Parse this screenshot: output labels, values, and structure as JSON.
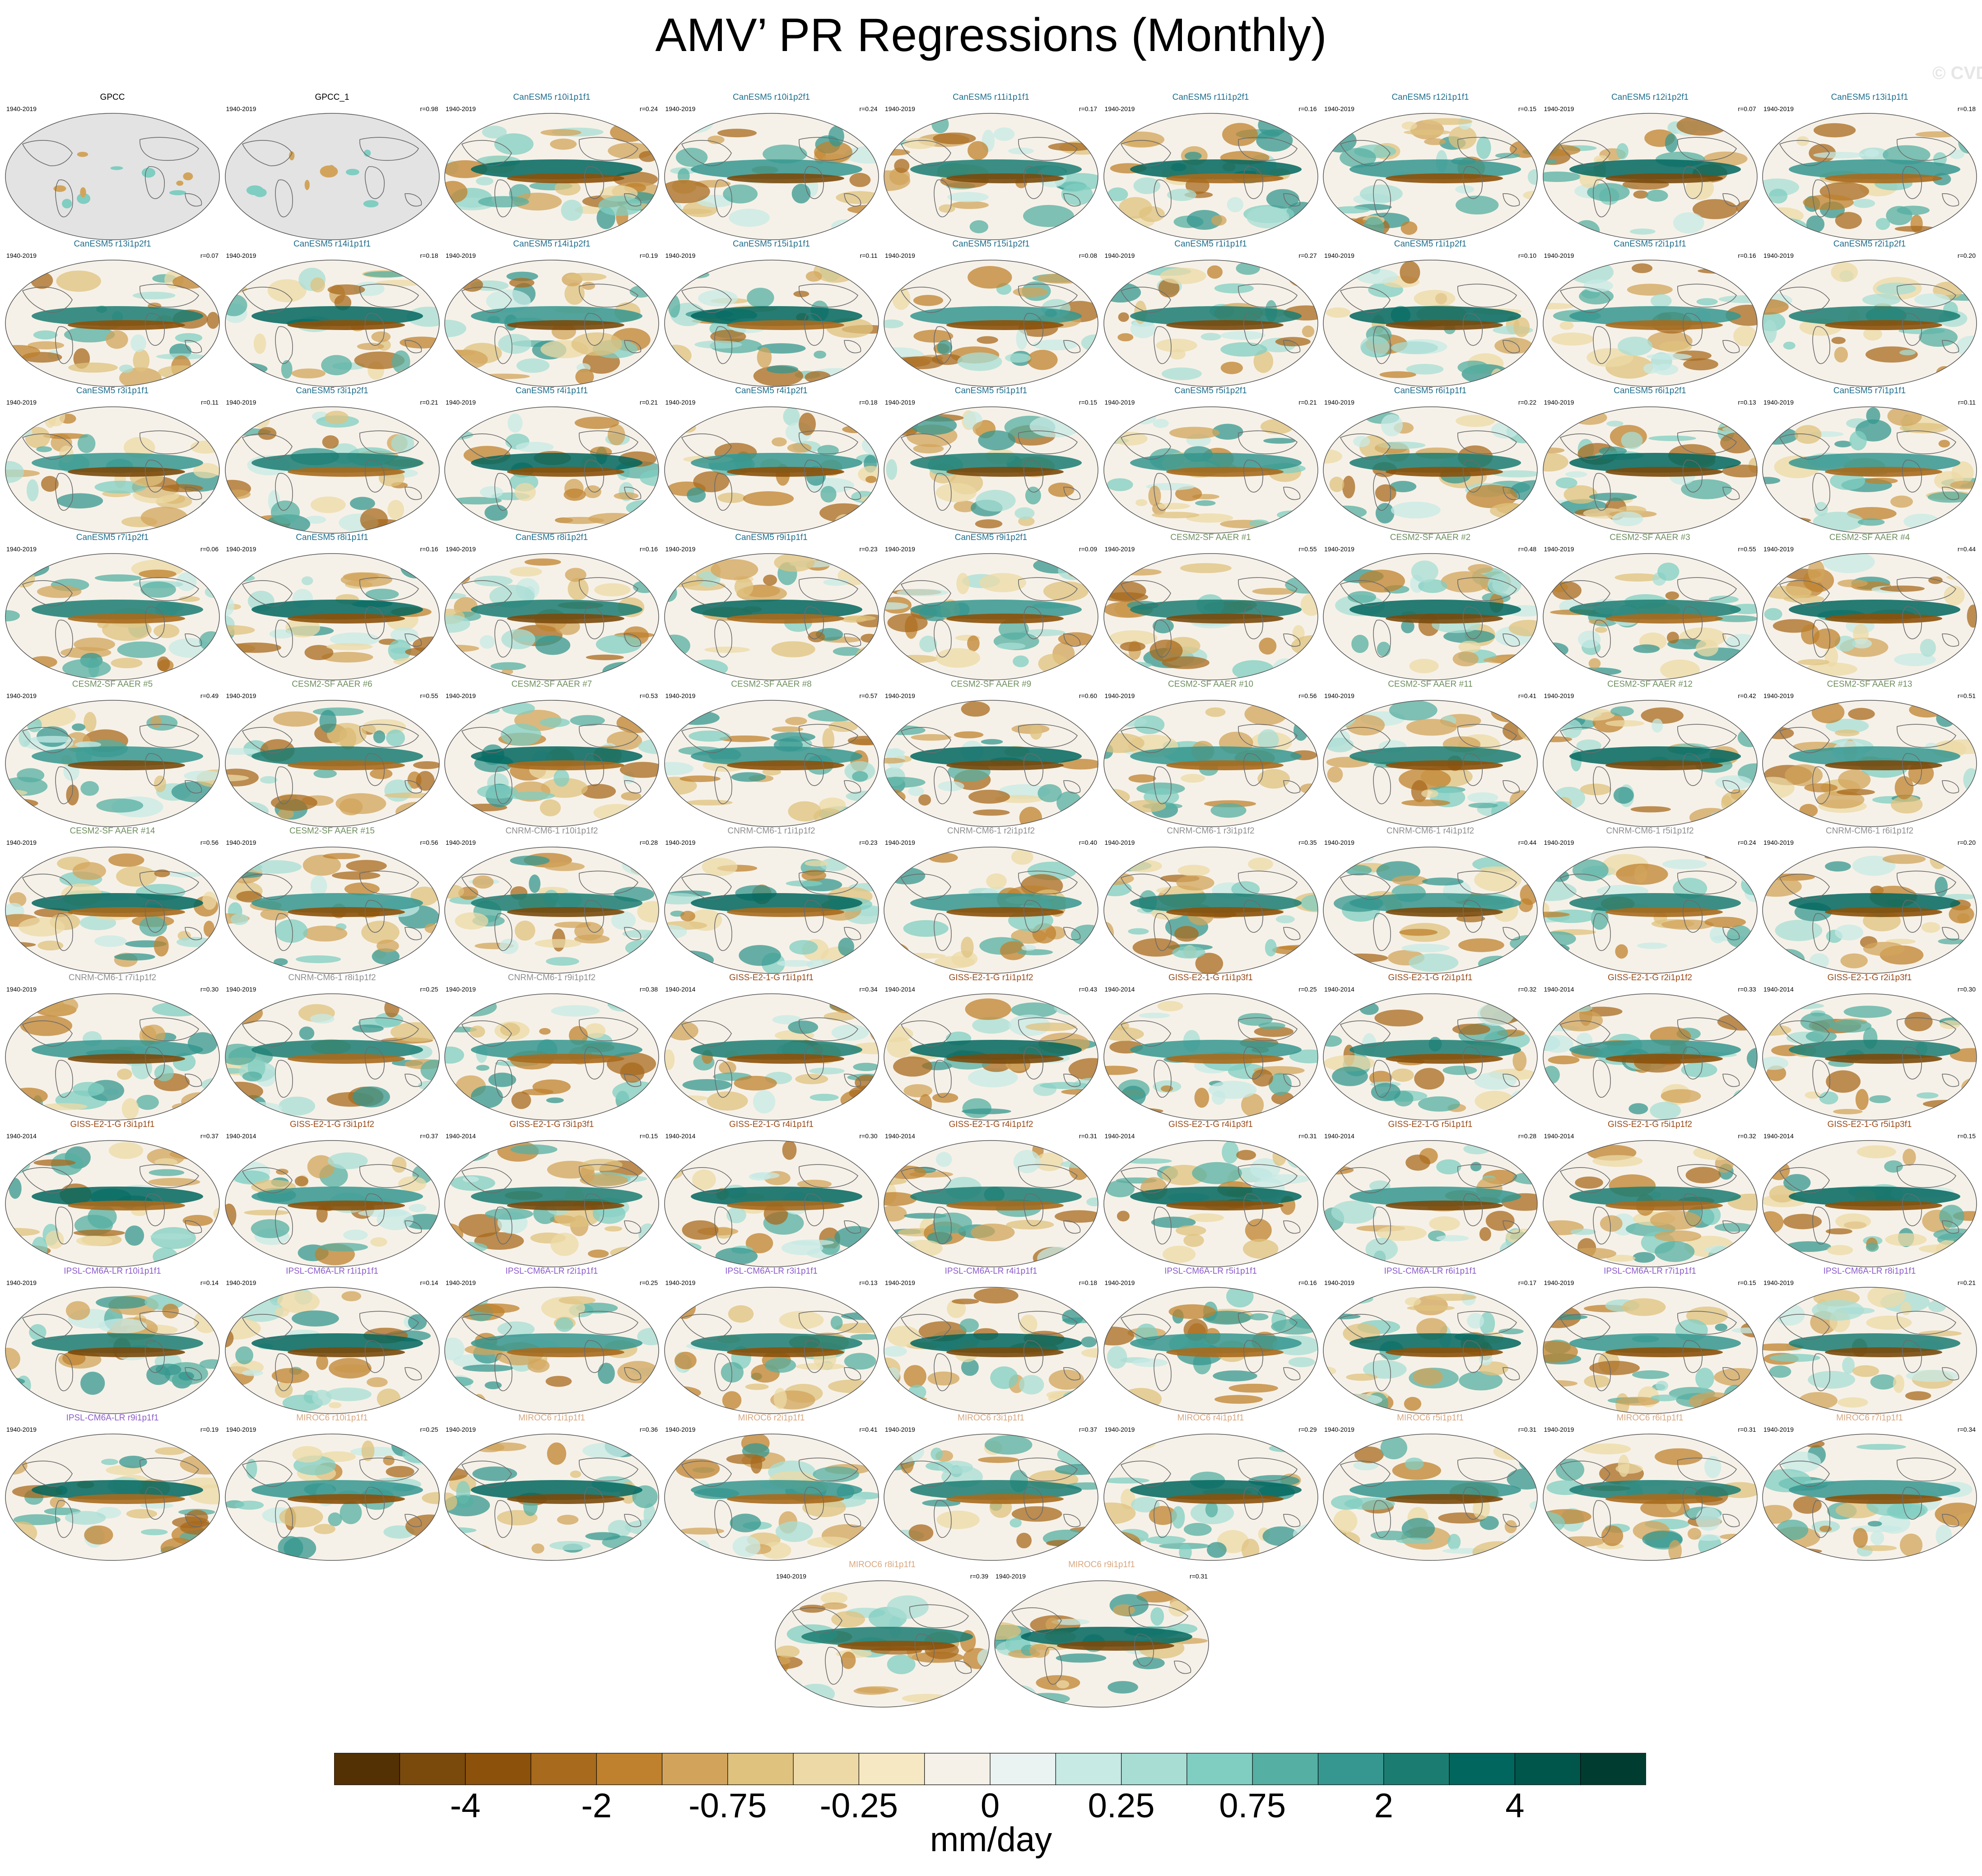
{
  "title": "AMV’ PR Regressions (Monthly)",
  "watermark": "© CVDP-LE",
  "colorbar": {
    "units": "mm/day",
    "colors": [
      "#543005",
      "#7a4a0c",
      "#8c510a",
      "#a86a1d",
      "#bf812d",
      "#d2a45b",
      "#dfc27d",
      "#ecd9a5",
      "#f6e8c3",
      "#f6f1e8",
      "#eaf3f2",
      "#c7eae5",
      "#a8ddd4",
      "#80cdc1",
      "#55afa2",
      "#35978f",
      "#1b7d72",
      "#01665e",
      "#01564c",
      "#003c30"
    ],
    "tick_labels": [
      "-4",
      "-2",
      "-0.75",
      "-0.25",
      "0",
      "0.25",
      "0.75",
      "2",
      "4"
    ]
  },
  "colors": {
    "obs": "#000000",
    "CanESM5": "#1f6e8c",
    "CESM2-SF AAER": "#6f8f5f",
    "CNRM-CM6-1": "#8f8f8f",
    "GISS-E2-1-G": "#9b4a18",
    "IPSL-CM6A-LR": "#8c5ccc",
    "MIROC6": "#d8a880"
  },
  "panels": [
    {
      "title": "GPCC",
      "years": "1940-2019",
      "r": "",
      "model": "obs"
    },
    {
      "title": "GPCC_1",
      "years": "1940-2019",
      "r": "r=0.98",
      "model": "obs"
    },
    {
      "title": "CanESM5 r10i1p1f1",
      "years": "1940-2019",
      "r": "r=0.24",
      "model": "CanESM5"
    },
    {
      "title": "CanESM5 r10i1p2f1",
      "years": "1940-2019",
      "r": "r=0.24",
      "model": "CanESM5"
    },
    {
      "title": "CanESM5 r11i1p1f1",
      "years": "1940-2019",
      "r": "r=0.17",
      "model": "CanESM5"
    },
    {
      "title": "CanESM5 r11i1p2f1",
      "years": "1940-2019",
      "r": "r=0.16",
      "model": "CanESM5"
    },
    {
      "title": "CanESM5 r12i1p1f1",
      "years": "1940-2019",
      "r": "r=0.15",
      "model": "CanESM5"
    },
    {
      "title": "CanESM5 r12i1p2f1",
      "years": "1940-2019",
      "r": "r=0.07",
      "model": "CanESM5"
    },
    {
      "title": "CanESM5 r13i1p1f1",
      "years": "1940-2019",
      "r": "r=0.18",
      "model": "CanESM5"
    },
    {
      "title": "CanESM5 r13i1p2f1",
      "years": "1940-2019",
      "r": "r=0.07",
      "model": "CanESM5"
    },
    {
      "title": "CanESM5 r14i1p1f1",
      "years": "1940-2019",
      "r": "r=0.18",
      "model": "CanESM5"
    },
    {
      "title": "CanESM5 r14i1p2f1",
      "years": "1940-2019",
      "r": "r=0.19",
      "model": "CanESM5"
    },
    {
      "title": "CanESM5 r15i1p1f1",
      "years": "1940-2019",
      "r": "r=0.11",
      "model": "CanESM5"
    },
    {
      "title": "CanESM5 r15i1p2f1",
      "years": "1940-2019",
      "r": "r=0.08",
      "model": "CanESM5"
    },
    {
      "title": "CanESM5 r1i1p1f1",
      "years": "1940-2019",
      "r": "r=0.27",
      "model": "CanESM5"
    },
    {
      "title": "CanESM5 r1i1p2f1",
      "years": "1940-2019",
      "r": "r=0.10",
      "model": "CanESM5"
    },
    {
      "title": "CanESM5 r2i1p1f1",
      "years": "1940-2019",
      "r": "r=0.16",
      "model": "CanESM5"
    },
    {
      "title": "CanESM5 r2i1p2f1",
      "years": "1940-2019",
      "r": "r=0.20",
      "model": "CanESM5"
    },
    {
      "title": "CanESM5 r3i1p1f1",
      "years": "1940-2019",
      "r": "r=0.11",
      "model": "CanESM5"
    },
    {
      "title": "CanESM5 r3i1p2f1",
      "years": "1940-2019",
      "r": "r=0.21",
      "model": "CanESM5"
    },
    {
      "title": "CanESM5 r4i1p1f1",
      "years": "1940-2019",
      "r": "r=0.21",
      "model": "CanESM5"
    },
    {
      "title": "CanESM5 r4i1p2f1",
      "years": "1940-2019",
      "r": "r=0.18",
      "model": "CanESM5"
    },
    {
      "title": "CanESM5 r5i1p1f1",
      "years": "1940-2019",
      "r": "r=0.15",
      "model": "CanESM5"
    },
    {
      "title": "CanESM5 r5i1p2f1",
      "years": "1940-2019",
      "r": "r=0.21",
      "model": "CanESM5"
    },
    {
      "title": "CanESM5 r6i1p1f1",
      "years": "1940-2019",
      "r": "r=0.22",
      "model": "CanESM5"
    },
    {
      "title": "CanESM5 r6i1p2f1",
      "years": "1940-2019",
      "r": "r=0.13",
      "model": "CanESM5"
    },
    {
      "title": "CanESM5 r7i1p1f1",
      "years": "1940-2019",
      "r": "r=0.11",
      "model": "CanESM5"
    },
    {
      "title": "CanESM5 r7i1p2f1",
      "years": "1940-2019",
      "r": "r=0.06",
      "model": "CanESM5"
    },
    {
      "title": "CanESM5 r8i1p1f1",
      "years": "1940-2019",
      "r": "r=0.16",
      "model": "CanESM5"
    },
    {
      "title": "CanESM5 r8i1p2f1",
      "years": "1940-2019",
      "r": "r=0.16",
      "model": "CanESM5"
    },
    {
      "title": "CanESM5 r9i1p1f1",
      "years": "1940-2019",
      "r": "r=0.23",
      "model": "CanESM5"
    },
    {
      "title": "CanESM5 r9i1p2f1",
      "years": "1940-2019",
      "r": "r=0.09",
      "model": "CanESM5"
    },
    {
      "title": "CESM2-SF AAER #1",
      "years": "1940-2019",
      "r": "r=0.55",
      "model": "CESM2-SF AAER"
    },
    {
      "title": "CESM2-SF AAER #2",
      "years": "1940-2019",
      "r": "r=0.48",
      "model": "CESM2-SF AAER"
    },
    {
      "title": "CESM2-SF AAER #3",
      "years": "1940-2019",
      "r": "r=0.55",
      "model": "CESM2-SF AAER"
    },
    {
      "title": "CESM2-SF AAER #4",
      "years": "1940-2019",
      "r": "r=0.44",
      "model": "CESM2-SF AAER"
    },
    {
      "title": "CESM2-SF AAER #5",
      "years": "1940-2019",
      "r": "r=0.49",
      "model": "CESM2-SF AAER"
    },
    {
      "title": "CESM2-SF AAER #6",
      "years": "1940-2019",
      "r": "r=0.55",
      "model": "CESM2-SF AAER"
    },
    {
      "title": "CESM2-SF AAER #7",
      "years": "1940-2019",
      "r": "r=0.53",
      "model": "CESM2-SF AAER"
    },
    {
      "title": "CESM2-SF AAER #8",
      "years": "1940-2019",
      "r": "r=0.57",
      "model": "CESM2-SF AAER"
    },
    {
      "title": "CESM2-SF AAER #9",
      "years": "1940-2019",
      "r": "r=0.60",
      "model": "CESM2-SF AAER"
    },
    {
      "title": "CESM2-SF AAER #10",
      "years": "1940-2019",
      "r": "r=0.56",
      "model": "CESM2-SF AAER"
    },
    {
      "title": "CESM2-SF AAER #11",
      "years": "1940-2019",
      "r": "r=0.41",
      "model": "CESM2-SF AAER"
    },
    {
      "title": "CESM2-SF AAER #12",
      "years": "1940-2019",
      "r": "r=0.42",
      "model": "CESM2-SF AAER"
    },
    {
      "title": "CESM2-SF AAER #13",
      "years": "1940-2019",
      "r": "r=0.51",
      "model": "CESM2-SF AAER"
    },
    {
      "title": "CESM2-SF AAER #14",
      "years": "1940-2019",
      "r": "r=0.56",
      "model": "CESM2-SF AAER"
    },
    {
      "title": "CESM2-SF AAER #15",
      "years": "1940-2019",
      "r": "r=0.56",
      "model": "CESM2-SF AAER"
    },
    {
      "title": "CNRM-CM6-1 r10i1p1f2",
      "years": "1940-2019",
      "r": "r=0.28",
      "model": "CNRM-CM6-1"
    },
    {
      "title": "CNRM-CM6-1 r1i1p1f2",
      "years": "1940-2019",
      "r": "r=0.23",
      "model": "CNRM-CM6-1"
    },
    {
      "title": "CNRM-CM6-1 r2i1p1f2",
      "years": "1940-2019",
      "r": "r=0.40",
      "model": "CNRM-CM6-1"
    },
    {
      "title": "CNRM-CM6-1 r3i1p1f2",
      "years": "1940-2019",
      "r": "r=0.35",
      "model": "CNRM-CM6-1"
    },
    {
      "title": "CNRM-CM6-1 r4i1p1f2",
      "years": "1940-2019",
      "r": "r=0.44",
      "model": "CNRM-CM6-1"
    },
    {
      "title": "CNRM-CM6-1 r5i1p1f2",
      "years": "1940-2019",
      "r": "r=0.24",
      "model": "CNRM-CM6-1"
    },
    {
      "title": "CNRM-CM6-1 r6i1p1f2",
      "years": "1940-2019",
      "r": "r=0.20",
      "model": "CNRM-CM6-1"
    },
    {
      "title": "CNRM-CM6-1 r7i1p1f2",
      "years": "1940-2019",
      "r": "r=0.30",
      "model": "CNRM-CM6-1"
    },
    {
      "title": "CNRM-CM6-1 r8i1p1f2",
      "years": "1940-2019",
      "r": "r=0.25",
      "model": "CNRM-CM6-1"
    },
    {
      "title": "CNRM-CM6-1 r9i1p1f2",
      "years": "1940-2019",
      "r": "r=0.38",
      "model": "CNRM-CM6-1"
    },
    {
      "title": "GISS-E2-1-G r1i1p1f1",
      "years": "1940-2014",
      "r": "r=0.34",
      "model": "GISS-E2-1-G"
    },
    {
      "title": "GISS-E2-1-G r1i1p1f2",
      "years": "1940-2014",
      "r": "r=0.43",
      "model": "GISS-E2-1-G"
    },
    {
      "title": "GISS-E2-1-G r1i1p3f1",
      "years": "1940-2014",
      "r": "r=0.25",
      "model": "GISS-E2-1-G"
    },
    {
      "title": "GISS-E2-1-G r2i1p1f1",
      "years": "1940-2014",
      "r": "r=0.32",
      "model": "GISS-E2-1-G"
    },
    {
      "title": "GISS-E2-1-G r2i1p1f2",
      "years": "1940-2014",
      "r": "r=0.33",
      "model": "GISS-E2-1-G"
    },
    {
      "title": "GISS-E2-1-G r2i1p3f1",
      "years": "1940-2014",
      "r": "r=0.30",
      "model": "GISS-E2-1-G"
    },
    {
      "title": "GISS-E2-1-G r3i1p1f1",
      "years": "1940-2014",
      "r": "r=0.37",
      "model": "GISS-E2-1-G"
    },
    {
      "title": "GISS-E2-1-G r3i1p1f2",
      "years": "1940-2014",
      "r": "r=0.37",
      "model": "GISS-E2-1-G"
    },
    {
      "title": "GISS-E2-1-G r3i1p3f1",
      "years": "1940-2014",
      "r": "r=0.15",
      "model": "GISS-E2-1-G"
    },
    {
      "title": "GISS-E2-1-G r4i1p1f1",
      "years": "1940-2014",
      "r": "r=0.30",
      "model": "GISS-E2-1-G"
    },
    {
      "title": "GISS-E2-1-G r4i1p1f2",
      "years": "1940-2014",
      "r": "r=0.31",
      "model": "GISS-E2-1-G"
    },
    {
      "title": "GISS-E2-1-G r4i1p3f1",
      "years": "1940-2014",
      "r": "r=0.31",
      "model": "GISS-E2-1-G"
    },
    {
      "title": "GISS-E2-1-G r5i1p1f1",
      "years": "1940-2014",
      "r": "r=0.28",
      "model": "GISS-E2-1-G"
    },
    {
      "title": "GISS-E2-1-G r5i1p1f2",
      "years": "1940-2014",
      "r": "r=0.32",
      "model": "GISS-E2-1-G"
    },
    {
      "title": "GISS-E2-1-G r5i1p3f1",
      "years": "1940-2014",
      "r": "r=0.15",
      "model": "GISS-E2-1-G"
    },
    {
      "title": "IPSL-CM6A-LR r10i1p1f1",
      "years": "1940-2019",
      "r": "r=0.14",
      "model": "IPSL-CM6A-LR"
    },
    {
      "title": "IPSL-CM6A-LR r1i1p1f1",
      "years": "1940-2019",
      "r": "r=0.14",
      "model": "IPSL-CM6A-LR"
    },
    {
      "title": "IPSL-CM6A-LR r2i1p1f1",
      "years": "1940-2019",
      "r": "r=0.25",
      "model": "IPSL-CM6A-LR"
    },
    {
      "title": "IPSL-CM6A-LR r3i1p1f1",
      "years": "1940-2019",
      "r": "r=0.13",
      "model": "IPSL-CM6A-LR"
    },
    {
      "title": "IPSL-CM6A-LR r4i1p1f1",
      "years": "1940-2019",
      "r": "r=0.18",
      "model": "IPSL-CM6A-LR"
    },
    {
      "title": "IPSL-CM6A-LR r5i1p1f1",
      "years": "1940-2019",
      "r": "r=0.16",
      "model": "IPSL-CM6A-LR"
    },
    {
      "title": "IPSL-CM6A-LR r6i1p1f1",
      "years": "1940-2019",
      "r": "r=0.17",
      "model": "IPSL-CM6A-LR"
    },
    {
      "title": "IPSL-CM6A-LR r7i1p1f1",
      "years": "1940-2019",
      "r": "r=0.15",
      "model": "IPSL-CM6A-LR"
    },
    {
      "title": "IPSL-CM6A-LR r8i1p1f1",
      "years": "1940-2019",
      "r": "r=0.21",
      "model": "IPSL-CM6A-LR"
    },
    {
      "title": "IPSL-CM6A-LR r9i1p1f1",
      "years": "1940-2019",
      "r": "r=0.19",
      "model": "IPSL-CM6A-LR"
    },
    {
      "title": "MIROC6 r10i1p1f1",
      "years": "1940-2019",
      "r": "r=0.25",
      "model": "MIROC6"
    },
    {
      "title": "MIROC6 r1i1p1f1",
      "years": "1940-2019",
      "r": "r=0.36",
      "model": "MIROC6"
    },
    {
      "title": "MIROC6 r2i1p1f1",
      "years": "1940-2019",
      "r": "r=0.41",
      "model": "MIROC6"
    },
    {
      "title": "MIROC6 r3i1p1f1",
      "years": "1940-2019",
      "r": "r=0.37",
      "model": "MIROC6"
    },
    {
      "title": "MIROC6 r4i1p1f1",
      "years": "1940-2019",
      "r": "r=0.29",
      "model": "MIROC6"
    },
    {
      "title": "MIROC6 r5i1p1f1",
      "years": "1940-2019",
      "r": "r=0.31",
      "model": "MIROC6"
    },
    {
      "title": "MIROC6 r6i1p1f1",
      "years": "1940-2019",
      "r": "r=0.31",
      "model": "MIROC6"
    },
    {
      "title": "MIROC6 r7i1p1f1",
      "years": "1940-2019",
      "r": "r=0.34",
      "model": "MIROC6"
    },
    {
      "title": "MIROC6 r8i1p1f1",
      "years": "1940-2019",
      "r": "r=0.39",
      "model": "MIROC6"
    },
    {
      "title": "MIROC6 r9i1p1f1",
      "years": "1940-2019",
      "r": "r=0.31",
      "model": "MIROC6"
    }
  ]
}
